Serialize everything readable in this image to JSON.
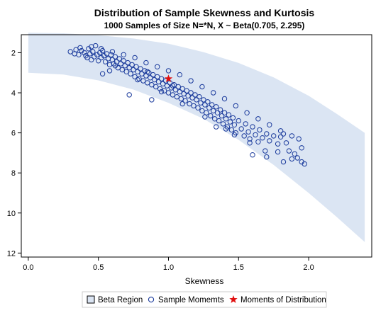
{
  "chart_data": {
    "type": "scatter",
    "title": "Distribution of Sample Skewness and Kurtosis",
    "subtitle": "1000 Samples of Size N=*N, X ~ Beta(0.705, 2.295)",
    "xlabel": "Skewness",
    "ylabel": "",
    "xlim": [
      -0.05,
      2.45
    ],
    "ylim": [
      12.2,
      1.1
    ],
    "y_reversed": true,
    "x_ticks": [
      0.0,
      0.5,
      1.0,
      1.5,
      2.0
    ],
    "x_tick_labels": [
      "0.0",
      "0.5",
      "1.0",
      "1.5",
      "2.0"
    ],
    "y_ticks": [
      2,
      4,
      6,
      8,
      10,
      12
    ],
    "y_tick_labels": [
      "2",
      "4",
      "6",
      "8",
      "10",
      "12"
    ],
    "grid": false,
    "legend_position": "bottom",
    "legend": [
      {
        "label": "Beta Region",
        "marker": "square"
      },
      {
        "label": "Sample Momemts",
        "marker": "circle"
      },
      {
        "label": "Moments of Distribution",
        "marker": "star"
      }
    ],
    "series": [
      {
        "name": "Beta Region",
        "kind": "band",
        "color": "#dbe5f3",
        "x": [
          0.0,
          0.25,
          0.5,
          0.75,
          1.0,
          1.25,
          1.5,
          1.75,
          2.0,
          2.2,
          2.4
        ],
        "y_upper": [
          1.0,
          1.03,
          1.13,
          1.29,
          1.55,
          1.97,
          2.51,
          3.23,
          4.15,
          5.05,
          6.0
        ],
        "y_lower": [
          3.0,
          3.09,
          3.38,
          3.84,
          4.5,
          5.3,
          6.35,
          7.6,
          9.0,
          10.2,
          11.45
        ]
      },
      {
        "name": "Sample Momemts",
        "kind": "scatter",
        "color": "#1a3a9c",
        "points": [
          [
            0.3,
            1.95
          ],
          [
            0.33,
            2.05
          ],
          [
            0.34,
            1.85
          ],
          [
            0.36,
            2.1
          ],
          [
            0.37,
            1.75
          ],
          [
            0.38,
            1.9
          ],
          [
            0.4,
            2.0
          ],
          [
            0.41,
            2.15
          ],
          [
            0.42,
            2.25
          ],
          [
            0.43,
            1.8
          ],
          [
            0.44,
            2.05
          ],
          [
            0.45,
            2.35
          ],
          [
            0.46,
            1.95
          ],
          [
            0.47,
            2.2
          ],
          [
            0.48,
            1.65
          ],
          [
            0.49,
            2.1
          ],
          [
            0.5,
            2.4
          ],
          [
            0.51,
            2.0
          ],
          [
            0.52,
            2.25
          ],
          [
            0.53,
            1.9
          ],
          [
            0.54,
            2.15
          ],
          [
            0.55,
            2.45
          ],
          [
            0.56,
            2.05
          ],
          [
            0.57,
            2.3
          ],
          [
            0.58,
            2.6
          ],
          [
            0.59,
            2.1
          ],
          [
            0.6,
            2.35
          ],
          [
            0.61,
            2.55
          ],
          [
            0.62,
            2.2
          ],
          [
            0.63,
            2.45
          ],
          [
            0.64,
            2.75
          ],
          [
            0.65,
            2.3
          ],
          [
            0.66,
            2.55
          ],
          [
            0.67,
            2.85
          ],
          [
            0.68,
            2.4
          ],
          [
            0.69,
            2.65
          ],
          [
            0.7,
            2.95
          ],
          [
            0.71,
            2.5
          ],
          [
            0.72,
            2.75
          ],
          [
            0.73,
            3.05
          ],
          [
            0.74,
            2.6
          ],
          [
            0.75,
            2.85
          ],
          [
            0.76,
            3.2
          ],
          [
            0.77,
            2.7
          ],
          [
            0.78,
            2.95
          ],
          [
            0.79,
            3.3
          ],
          [
            0.8,
            2.8
          ],
          [
            0.81,
            3.05
          ],
          [
            0.82,
            3.4
          ],
          [
            0.83,
            2.9
          ],
          [
            0.84,
            3.15
          ],
          [
            0.85,
            3.5
          ],
          [
            0.86,
            3.0
          ],
          [
            0.87,
            3.25
          ],
          [
            0.88,
            3.6
          ],
          [
            0.89,
            3.1
          ],
          [
            0.9,
            3.35
          ],
          [
            0.91,
            3.7
          ],
          [
            0.92,
            3.2
          ],
          [
            0.93,
            3.45
          ],
          [
            0.94,
            3.8
          ],
          [
            0.95,
            3.3
          ],
          [
            0.96,
            3.55
          ],
          [
            0.97,
            3.9
          ],
          [
            0.98,
            3.4
          ],
          [
            0.99,
            3.65
          ],
          [
            1.0,
            4.0
          ],
          [
            1.01,
            3.5
          ],
          [
            1.02,
            3.75
          ],
          [
            1.03,
            4.1
          ],
          [
            1.04,
            3.6
          ],
          [
            1.05,
            3.85
          ],
          [
            1.06,
            4.2
          ],
          [
            1.07,
            3.7
          ],
          [
            1.08,
            3.95
          ],
          [
            1.09,
            4.3
          ],
          [
            1.1,
            3.8
          ],
          [
            1.11,
            4.05
          ],
          [
            1.12,
            4.4
          ],
          [
            1.13,
            3.9
          ],
          [
            1.14,
            4.15
          ],
          [
            1.15,
            4.55
          ],
          [
            1.16,
            4.0
          ],
          [
            1.17,
            4.25
          ],
          [
            1.18,
            4.65
          ],
          [
            1.19,
            4.1
          ],
          [
            1.2,
            4.35
          ],
          [
            1.21,
            4.75
          ],
          [
            1.22,
            4.2
          ],
          [
            1.23,
            4.5
          ],
          [
            1.24,
            4.9
          ],
          [
            1.25,
            4.35
          ],
          [
            1.26,
            4.6
          ],
          [
            1.27,
            5.0
          ],
          [
            1.28,
            4.45
          ],
          [
            1.29,
            4.75
          ],
          [
            1.3,
            5.15
          ],
          [
            1.31,
            4.6
          ],
          [
            1.32,
            4.9
          ],
          [
            1.33,
            5.3
          ],
          [
            1.34,
            4.7
          ],
          [
            1.35,
            5.0
          ],
          [
            1.36,
            5.4
          ],
          [
            1.37,
            4.85
          ],
          [
            1.38,
            5.15
          ],
          [
            1.39,
            5.55
          ],
          [
            1.4,
            5.0
          ],
          [
            1.41,
            5.3
          ],
          [
            1.42,
            5.7
          ],
          [
            1.43,
            5.1
          ],
          [
            1.44,
            5.45
          ],
          [
            1.45,
            5.85
          ],
          [
            1.46,
            5.25
          ],
          [
            1.47,
            5.6
          ],
          [
            1.48,
            6.0
          ],
          [
            1.5,
            5.4
          ],
          [
            1.52,
            5.8
          ],
          [
            1.54,
            6.15
          ],
          [
            1.55,
            5.55
          ],
          [
            1.57,
            5.95
          ],
          [
            1.58,
            6.3
          ],
          [
            1.6,
            5.7
          ],
          [
            1.62,
            6.1
          ],
          [
            1.64,
            6.45
          ],
          [
            1.65,
            5.85
          ],
          [
            1.67,
            6.25
          ],
          [
            1.7,
            6.05
          ],
          [
            1.72,
            6.4
          ],
          [
            1.75,
            6.15
          ],
          [
            1.78,
            6.55
          ],
          [
            1.8,
            6.2
          ],
          [
            1.82,
            6.05
          ],
          [
            1.84,
            6.5
          ],
          [
            1.86,
            6.9
          ],
          [
            1.88,
            7.3
          ],
          [
            1.9,
            7.05
          ],
          [
            1.92,
            7.25
          ],
          [
            1.95,
            6.75
          ],
          [
            1.97,
            7.55
          ],
          [
            1.82,
            7.45
          ],
          [
            0.58,
            2.9
          ],
          [
            0.72,
            4.1
          ],
          [
            1.6,
            7.1
          ],
          [
            0.53,
            3.05
          ],
          [
            0.88,
            4.35
          ],
          [
            1.34,
            5.7
          ],
          [
            1.47,
            6.1
          ],
          [
            1.7,
            7.2
          ],
          [
            1.78,
            6.95
          ],
          [
            1.95,
            7.45
          ],
          [
            0.45,
            1.7
          ],
          [
            0.52,
            1.8
          ],
          [
            0.6,
            1.95
          ],
          [
            0.68,
            2.1
          ],
          [
            0.76,
            2.25
          ],
          [
            0.84,
            2.5
          ],
          [
            0.92,
            2.7
          ],
          [
            1.0,
            2.9
          ],
          [
            1.08,
            3.1
          ],
          [
            1.16,
            3.4
          ],
          [
            1.24,
            3.7
          ],
          [
            1.32,
            4.0
          ],
          [
            1.4,
            4.3
          ],
          [
            1.48,
            4.65
          ],
          [
            1.56,
            5.0
          ],
          [
            1.64,
            5.3
          ],
          [
            1.72,
            5.6
          ],
          [
            1.8,
            5.9
          ],
          [
            1.88,
            6.15
          ],
          [
            1.93,
            6.3
          ],
          [
            0.62,
            2.65
          ],
          [
            0.78,
            3.35
          ],
          [
            0.95,
            3.95
          ],
          [
            1.1,
            4.55
          ],
          [
            1.26,
            5.2
          ],
          [
            1.41,
            5.8
          ],
          [
            1.58,
            6.5
          ],
          [
            1.69,
            6.9
          ],
          [
            0.85,
            2.95
          ],
          [
            1.03,
            3.65
          ]
        ]
      },
      {
        "name": "Moments of Distribution",
        "kind": "marker",
        "color": "#e01010",
        "x": 1.0,
        "y": 3.3
      }
    ]
  }
}
